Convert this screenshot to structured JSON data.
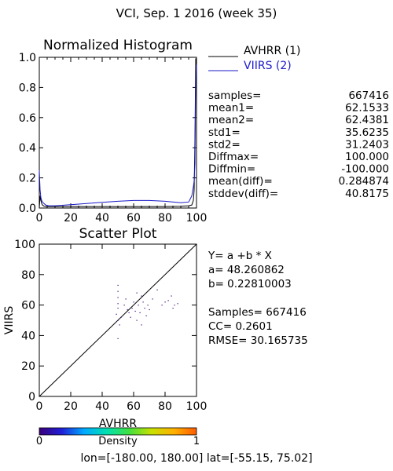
{
  "figure": {
    "title": "VCI,  Sep. 1 2016 (week 35)",
    "footer": {
      "lon_label": "lon=",
      "lon_range": "[-180.00, 180.00]",
      "lat_label": "lat=",
      "lat_range": "[-55.15, 75.02]"
    }
  },
  "colors": {
    "avhrr": "#000000",
    "viirs": "#1a1ac8",
    "axes": "#000000"
  },
  "histogram_stats": [
    {
      "label": "samples=",
      "value": "667416"
    },
    {
      "label": "mean1=",
      "value": "62.1533"
    },
    {
      "label": "mean2=",
      "value": "62.4381"
    },
    {
      "label": "std1=",
      "value": "35.6235"
    },
    {
      "label": "std2=",
      "value": "31.2403"
    },
    {
      "label": "Diffmax=",
      "value": "100.000"
    },
    {
      "label": "Diffmin=",
      "value": "-100.000"
    },
    {
      "label": "mean(diff)=",
      "value": "0.284874"
    },
    {
      "label": "stddev(diff)=",
      "value": "40.8175"
    }
  ],
  "scatter_stats": {
    "equation": "Y=  a  +b  *  X",
    "a": "a=  48.260862",
    "b": "b=  0.22810003",
    "samples": "Samples=  667416",
    "cc": "CC=   0.2601",
    "rmse": "RMSE=  30.165735"
  },
  "colorbar": {
    "label": "Density",
    "min": "0",
    "max": "1",
    "colors": [
      "#3a007a",
      "#1f1fd6",
      "#00aaff",
      "#00e0b0",
      "#40e040",
      "#c8e000",
      "#ffb000",
      "#ff5a00"
    ]
  },
  "chart_data": [
    {
      "type": "line",
      "title": "Normalized Histogram",
      "xlim": [
        0,
        100
      ],
      "ylim": [
        0,
        1
      ],
      "xticks": [
        "0",
        "20",
        "40",
        "60",
        "80",
        "100"
      ],
      "yticks": [
        "0.0",
        "0.2",
        "0.4",
        "0.6",
        "0.8",
        "1.0"
      ],
      "legend_position": "top-right",
      "series": [
        {
          "name": "AVHRR (1)",
          "color": "#000000",
          "x": [
            0,
            0.5,
            1,
            1.5,
            2,
            3,
            4,
            5,
            6,
            8,
            10,
            20,
            30,
            40,
            50,
            60,
            70,
            80,
            90,
            95,
            97,
            98,
            98.5,
            99,
            99.5,
            100
          ],
          "y": [
            0.0,
            0.08,
            0.05,
            0.03,
            0.02,
            0.012,
            0.01,
            0.01,
            0.01,
            0.01,
            0.01,
            0.01,
            0.01,
            0.01,
            0.01,
            0.01,
            0.01,
            0.01,
            0.012,
            0.015,
            0.02,
            0.05,
            0.12,
            0.45,
            0.99,
            0.99
          ]
        },
        {
          "name": "VIIRS (2)",
          "color": "#1a1ac8",
          "x": [
            0,
            0.5,
            1,
            1.5,
            2,
            3,
            4,
            6,
            10,
            20,
            30,
            40,
            50,
            60,
            70,
            80,
            90,
            95,
            97,
            98,
            98.5,
            99,
            99.5,
            100
          ],
          "y": [
            0.25,
            0.12,
            0.07,
            0.05,
            0.04,
            0.03,
            0.02,
            0.015,
            0.015,
            0.022,
            0.03,
            0.038,
            0.045,
            0.05,
            0.05,
            0.045,
            0.035,
            0.04,
            0.08,
            0.14,
            0.18,
            0.3,
            0.85,
            0.95
          ]
        }
      ]
    },
    {
      "type": "scatter",
      "title": "Scatter Plot",
      "xlabel": "AVHRR",
      "ylabel": "VIIRS",
      "xlim": [
        0,
        100
      ],
      "ylim": [
        0,
        100
      ],
      "xticks": [
        "0",
        "20",
        "40",
        "60",
        "80",
        "100"
      ],
      "yticks": [
        "0",
        "20",
        "40",
        "60",
        "80",
        "100"
      ],
      "identity_line": true,
      "points": [
        [
          50,
          73
        ],
        [
          50,
          69
        ],
        [
          50,
          65
        ],
        [
          50,
          61
        ],
        [
          50,
          58
        ],
        [
          49,
          54
        ],
        [
          50,
          50
        ],
        [
          51,
          47
        ],
        [
          50,
          38
        ],
        [
          52,
          52
        ],
        [
          54,
          60
        ],
        [
          55,
          64
        ],
        [
          56,
          57
        ],
        [
          57,
          55
        ],
        [
          58,
          52
        ],
        [
          59,
          58
        ],
        [
          60,
          62
        ],
        [
          61,
          56
        ],
        [
          62,
          50
        ],
        [
          63,
          60
        ],
        [
          64,
          55
        ],
        [
          65,
          66
        ],
        [
          66,
          62
        ],
        [
          67,
          58
        ],
        [
          68,
          53
        ],
        [
          69,
          60
        ],
        [
          70,
          57
        ],
        [
          62,
          68
        ],
        [
          65,
          47
        ],
        [
          72,
          64
        ],
        [
          75,
          70
        ],
        [
          78,
          60
        ],
        [
          80,
          62
        ],
        [
          82,
          63
        ],
        [
          85,
          58
        ],
        [
          86,
          60
        ],
        [
          88,
          61
        ],
        [
          84,
          66
        ]
      ]
    }
  ]
}
